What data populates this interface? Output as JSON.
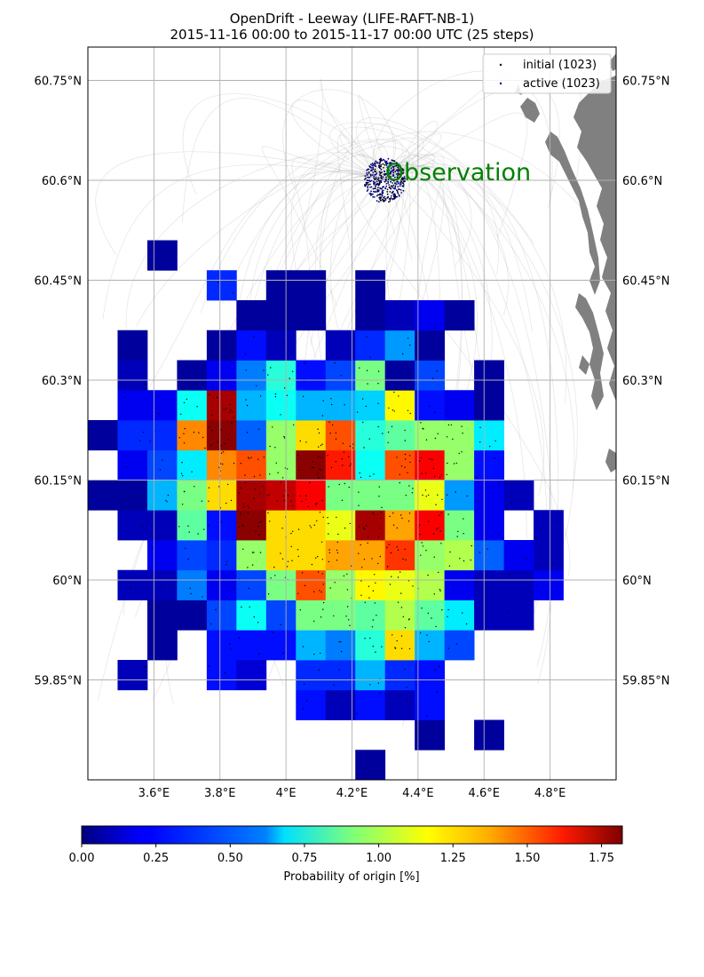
{
  "title": {
    "line1": "OpenDrift - Leeway (LIFE-RAFT-NB-1)",
    "line2": "2015-11-16 00:00 to 2015-11-17 00:00 UTC (25 steps)"
  },
  "map": {
    "lon_range": [
      3.4,
      5.0
    ],
    "lat_range": [
      59.7,
      60.8
    ],
    "lon_ticks": [
      {
        "value": 3.6,
        "label": "3.6°E"
      },
      {
        "value": 3.8,
        "label": "3.8°E"
      },
      {
        "value": 4.0,
        "label": "4°E"
      },
      {
        "value": 4.2,
        "label": "4.2°E"
      },
      {
        "value": 4.4,
        "label": "4.4°E"
      },
      {
        "value": 4.6,
        "label": "4.6°E"
      },
      {
        "value": 4.8,
        "label": "4.8°E"
      }
    ],
    "lat_ticks": [
      {
        "value": 59.85,
        "label": "59.85°N"
      },
      {
        "value": 60.0,
        "label": "60°N"
      },
      {
        "value": 60.15,
        "label": "60.15°N"
      },
      {
        "value": 60.3,
        "label": "60.3°N"
      },
      {
        "value": 60.45,
        "label": "60.45°N"
      },
      {
        "value": 60.6,
        "label": "60.6°N"
      },
      {
        "value": 60.75,
        "label": "60.75°N"
      }
    ],
    "grid": true,
    "land_color": "#808080",
    "observation": {
      "label": "Observation",
      "label_color": "#008000",
      "lon": 4.3,
      "lat": 60.6,
      "radius_deg": 0.045
    }
  },
  "legend": {
    "position": "top-right",
    "entries": [
      {
        "label": "initial (1023)",
        "marker_color": "#000000"
      },
      {
        "label": "active (1023)",
        "marker_color": "#000080"
      }
    ]
  },
  "colorbar": {
    "label": "Probability of origin [%]",
    "min": 0.0,
    "max": 1.82,
    "ticks": [
      {
        "value": 0.0,
        "label": "0.00"
      },
      {
        "value": 0.25,
        "label": "0.25"
      },
      {
        "value": 0.5,
        "label": "0.50"
      },
      {
        "value": 0.75,
        "label": "0.75"
      },
      {
        "value": 1.0,
        "label": "1.00"
      },
      {
        "value": 1.25,
        "label": "1.25"
      },
      {
        "value": 1.5,
        "label": "1.50"
      },
      {
        "value": 1.75,
        "label": "1.75"
      }
    ],
    "colormap": "jet"
  },
  "chart_data": {
    "type": "heatmap",
    "lon_edges_start": 3.4,
    "lon_step": 0.09,
    "lat_edges_start": 59.7,
    "lat_step": 0.045,
    "rows_from_south": [
      [
        null,
        null,
        null,
        null,
        null,
        null,
        null,
        null,
        null,
        0.05,
        null,
        null,
        null,
        null,
        null,
        null,
        null
      ],
      [
        null,
        null,
        null,
        null,
        null,
        null,
        null,
        null,
        null,
        null,
        null,
        0.05,
        null,
        0.05,
        null,
        null,
        null
      ],
      [
        null,
        null,
        null,
        null,
        null,
        null,
        null,
        0.25,
        0.1,
        0.25,
        0.1,
        0.25,
        null,
        null,
        null,
        null,
        null
      ],
      [
        null,
        0.1,
        null,
        null,
        0.25,
        0.15,
        null,
        0.3,
        0.3,
        0.55,
        0.3,
        0.25,
        null,
        null,
        null,
        null,
        null
      ],
      [
        null,
        null,
        0.05,
        null,
        0.25,
        0.25,
        0.25,
        0.55,
        0.45,
        0.75,
        1.2,
        0.55,
        0.35,
        null,
        null,
        null,
        null
      ],
      [
        null,
        null,
        0.05,
        0.05,
        0.35,
        0.7,
        0.35,
        0.9,
        0.9,
        0.85,
        1.0,
        0.85,
        0.65,
        0.1,
        0.1,
        null,
        null
      ],
      [
        null,
        0.1,
        0.1,
        0.45,
        0.2,
        0.35,
        0.9,
        1.45,
        0.95,
        1.15,
        1.1,
        1.0,
        0.2,
        0.1,
        0.1,
        0.2,
        null
      ],
      [
        null,
        null,
        0.2,
        0.35,
        0.3,
        0.95,
        1.2,
        1.2,
        1.3,
        1.3,
        1.5,
        0.95,
        1.0,
        0.4,
        0.2,
        0.1,
        null
      ],
      [
        null,
        0.1,
        0.1,
        0.85,
        0.25,
        1.8,
        1.2,
        1.2,
        1.1,
        1.75,
        1.3,
        1.6,
        0.9,
        0.2,
        null,
        0.1,
        null
      ],
      [
        0.05,
        0.05,
        0.55,
        0.9,
        1.2,
        1.75,
        1.7,
        1.6,
        0.9,
        0.9,
        0.9,
        1.1,
        0.5,
        0.2,
        0.1,
        null,
        null
      ],
      [
        null,
        0.2,
        0.35,
        0.65,
        1.35,
        1.45,
        0.95,
        1.8,
        1.55,
        0.7,
        1.45,
        1.6,
        0.95,
        0.25,
        null,
        null,
        null
      ],
      [
        0.05,
        0.3,
        0.3,
        1.35,
        1.8,
        0.4,
        0.95,
        1.2,
        1.45,
        0.75,
        0.85,
        0.95,
        0.95,
        0.65,
        null,
        null,
        null
      ],
      [
        null,
        0.2,
        0.2,
        0.7,
        1.75,
        0.55,
        0.7,
        0.55,
        0.55,
        0.6,
        1.15,
        0.25,
        0.2,
        0.05,
        null,
        null,
        null
      ],
      [
        null,
        0.1,
        null,
        0.05,
        0.2,
        0.45,
        0.75,
        0.25,
        0.35,
        0.9,
        0.05,
        0.35,
        null,
        0.05,
        null,
        null,
        null
      ],
      [
        null,
        0.05,
        null,
        null,
        0.05,
        0.25,
        0.1,
        null,
        0.1,
        0.3,
        0.5,
        0.05,
        null,
        null,
        null,
        null,
        null
      ],
      [
        null,
        null,
        null,
        null,
        null,
        0.05,
        0.05,
        0.05,
        null,
        0.05,
        0.1,
        0.2,
        0.05,
        null,
        null,
        null,
        null
      ],
      [
        null,
        null,
        null,
        null,
        0.3,
        null,
        0.05,
        0.05,
        null,
        0.05,
        null,
        null,
        null,
        null,
        null,
        null,
        null
      ],
      [
        null,
        null,
        0.05,
        null,
        null,
        null,
        null,
        null,
        null,
        null,
        null,
        null,
        null,
        null,
        null,
        null,
        null
      ]
    ]
  }
}
